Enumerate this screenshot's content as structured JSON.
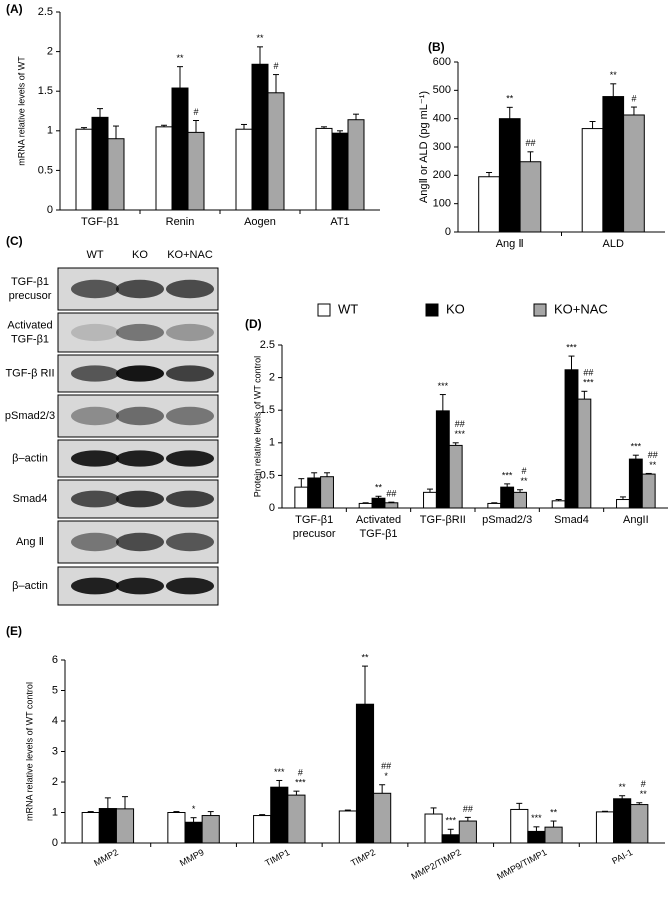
{
  "chart_data": [
    {
      "type": "bar",
      "label": "(A)",
      "ylabel": "mRNA  relative levels of WT",
      "categories": [
        "TGF-β1",
        "Renin",
        "Aogen",
        "AT1"
      ],
      "ylim": [
        0,
        2.5
      ],
      "yticks": [
        0,
        0.5,
        1,
        1.5,
        2,
        2.5
      ],
      "series": [
        {
          "color": "#ffffff",
          "values": [
            1.02,
            1.05,
            1.02,
            1.03
          ],
          "errors": [
            0.02,
            0.02,
            0.06,
            0.02
          ],
          "annotations": [
            null,
            null,
            null,
            null
          ]
        },
        {
          "color": "#000000",
          "values": [
            1.17,
            1.54,
            1.84,
            0.97
          ],
          "errors": [
            0.11,
            0.27,
            0.22,
            0.03
          ],
          "annotations": [
            null,
            [
              "**"
            ],
            [
              "**"
            ],
            null
          ]
        },
        {
          "color": "#a6a6a6",
          "values": [
            0.9,
            0.98,
            1.48,
            1.14
          ],
          "errors": [
            0.16,
            0.15,
            0.23,
            0.07
          ],
          "annotations": [
            null,
            [
              "#"
            ],
            [
              "#"
            ],
            null
          ]
        }
      ]
    },
    {
      "type": "bar",
      "label": "(B)",
      "ylabel": "AngⅡ  or  ALD (pg mL⁻¹)",
      "categories": [
        "Ang Ⅱ",
        "ALD"
      ],
      "ylim": [
        0,
        600
      ],
      "yticks": [
        0,
        100,
        200,
        300,
        400,
        500,
        600
      ],
      "series": [
        {
          "color": "#ffffff",
          "values": [
            195,
            365
          ],
          "errors": [
            15,
            25
          ],
          "annotations": [
            null,
            null
          ]
        },
        {
          "color": "#000000",
          "values": [
            400,
            478
          ],
          "errors": [
            40,
            45
          ],
          "annotations": [
            [
              "**"
            ],
            [
              "**"
            ]
          ]
        },
        {
          "color": "#a6a6a6",
          "values": [
            248,
            413
          ],
          "errors": [
            35,
            28
          ],
          "annotations": [
            [
              "##"
            ],
            [
              "#"
            ]
          ]
        }
      ]
    },
    {
      "type": "bar",
      "label": "(D)",
      "ylabel": "Protein relative levels of WT control",
      "legend": "top",
      "categories": [
        [
          "TGF-β1",
          "precusor"
        ],
        [
          "Activated",
          "TGF-β1"
        ],
        [
          "TGF-βRII"
        ],
        [
          "pSmad2/3"
        ],
        [
          "Smad4"
        ],
        [
          "AngII"
        ]
      ],
      "ylim": [
        0,
        2.5
      ],
      "yticks": [
        0,
        0.5,
        1,
        1.5,
        2,
        2.5
      ],
      "series": [
        {
          "name": "WT",
          "color": "#ffffff",
          "values": [
            0.32,
            0.07,
            0.24,
            0.07,
            0.11,
            0.13
          ],
          "errors": [
            0.13,
            0.01,
            0.05,
            0.01,
            0.02,
            0.04
          ],
          "annotations": [
            null,
            null,
            null,
            null,
            null,
            null
          ]
        },
        {
          "name": "KO",
          "color": "#000000",
          "values": [
            0.46,
            0.15,
            1.49,
            0.32,
            2.12,
            0.75
          ],
          "errors": [
            0.08,
            0.03,
            0.25,
            0.05,
            0.21,
            0.06
          ],
          "annotations": [
            null,
            [
              "**"
            ],
            [
              "***"
            ],
            [
              "***"
            ],
            [
              "***"
            ],
            [
              "***"
            ]
          ]
        },
        {
          "name": "KO+NAC",
          "color": "#a6a6a6",
          "values": [
            0.48,
            0.08,
            0.96,
            0.24,
            1.67,
            0.52
          ],
          "errors": [
            0.06,
            0.01,
            0.04,
            0.04,
            0.12,
            0.01
          ],
          "annotations": [
            null,
            [
              "##"
            ],
            [
              "##",
              "***"
            ],
            [
              "#",
              "**"
            ],
            [
              "##",
              "***"
            ],
            [
              "##",
              "**"
            ]
          ]
        }
      ]
    },
    {
      "type": "bar",
      "label": "(E)",
      "ylabel": "mRNA  relative levels of WT control",
      "categories": [
        "MMP2",
        "MMP9",
        "TIMP1",
        "TIMP2",
        "MMP2/TIMP2",
        "MMP9/TIMP1",
        "PAI-1"
      ],
      "ylim": [
        0,
        6
      ],
      "yticks": [
        0,
        1,
        2,
        3,
        4,
        5,
        6
      ],
      "series": [
        {
          "color": "#ffffff",
          "values": [
            1.0,
            1.0,
            0.9,
            1.05,
            0.95,
            1.1,
            1.02
          ],
          "errors": [
            0.03,
            0.03,
            0.03,
            0.03,
            0.2,
            0.2,
            0.02
          ],
          "annotations": [
            null,
            null,
            null,
            null,
            null,
            null,
            null
          ]
        },
        {
          "color": "#000000",
          "values": [
            1.13,
            0.68,
            1.83,
            4.55,
            0.27,
            0.38,
            1.45
          ],
          "errors": [
            0.35,
            0.15,
            0.22,
            1.25,
            0.18,
            0.15,
            0.1
          ],
          "annotations": [
            null,
            [
              "*"
            ],
            [
              "***"
            ],
            [
              "**"
            ],
            [
              "***"
            ],
            [
              "***"
            ],
            [
              "**"
            ]
          ]
        },
        {
          "color": "#a6a6a6",
          "values": [
            1.12,
            0.9,
            1.57,
            1.63,
            0.72,
            0.52,
            1.26
          ],
          "errors": [
            0.4,
            0.13,
            0.13,
            0.28,
            0.12,
            0.2,
            0.06
          ],
          "annotations": [
            null,
            null,
            [
              "#",
              "***"
            ],
            [
              "##",
              "*"
            ],
            [
              "##"
            ],
            [
              "**"
            ],
            [
              "#",
              "**"
            ]
          ]
        }
      ]
    }
  ],
  "blot": {
    "label": "(C)",
    "columns": [
      "WT",
      "KO",
      "KO+NAC"
    ],
    "rows": [
      [
        "TGF-β1",
        "precusor"
      ],
      [
        "Activated",
        "TGF-β1"
      ],
      [
        "TGF-β RII"
      ],
      [
        "pSmad2/3"
      ],
      [
        "β–actin"
      ],
      [
        "Smad4"
      ],
      [
        "Ang Ⅱ"
      ],
      [
        "β–actin"
      ]
    ]
  }
}
